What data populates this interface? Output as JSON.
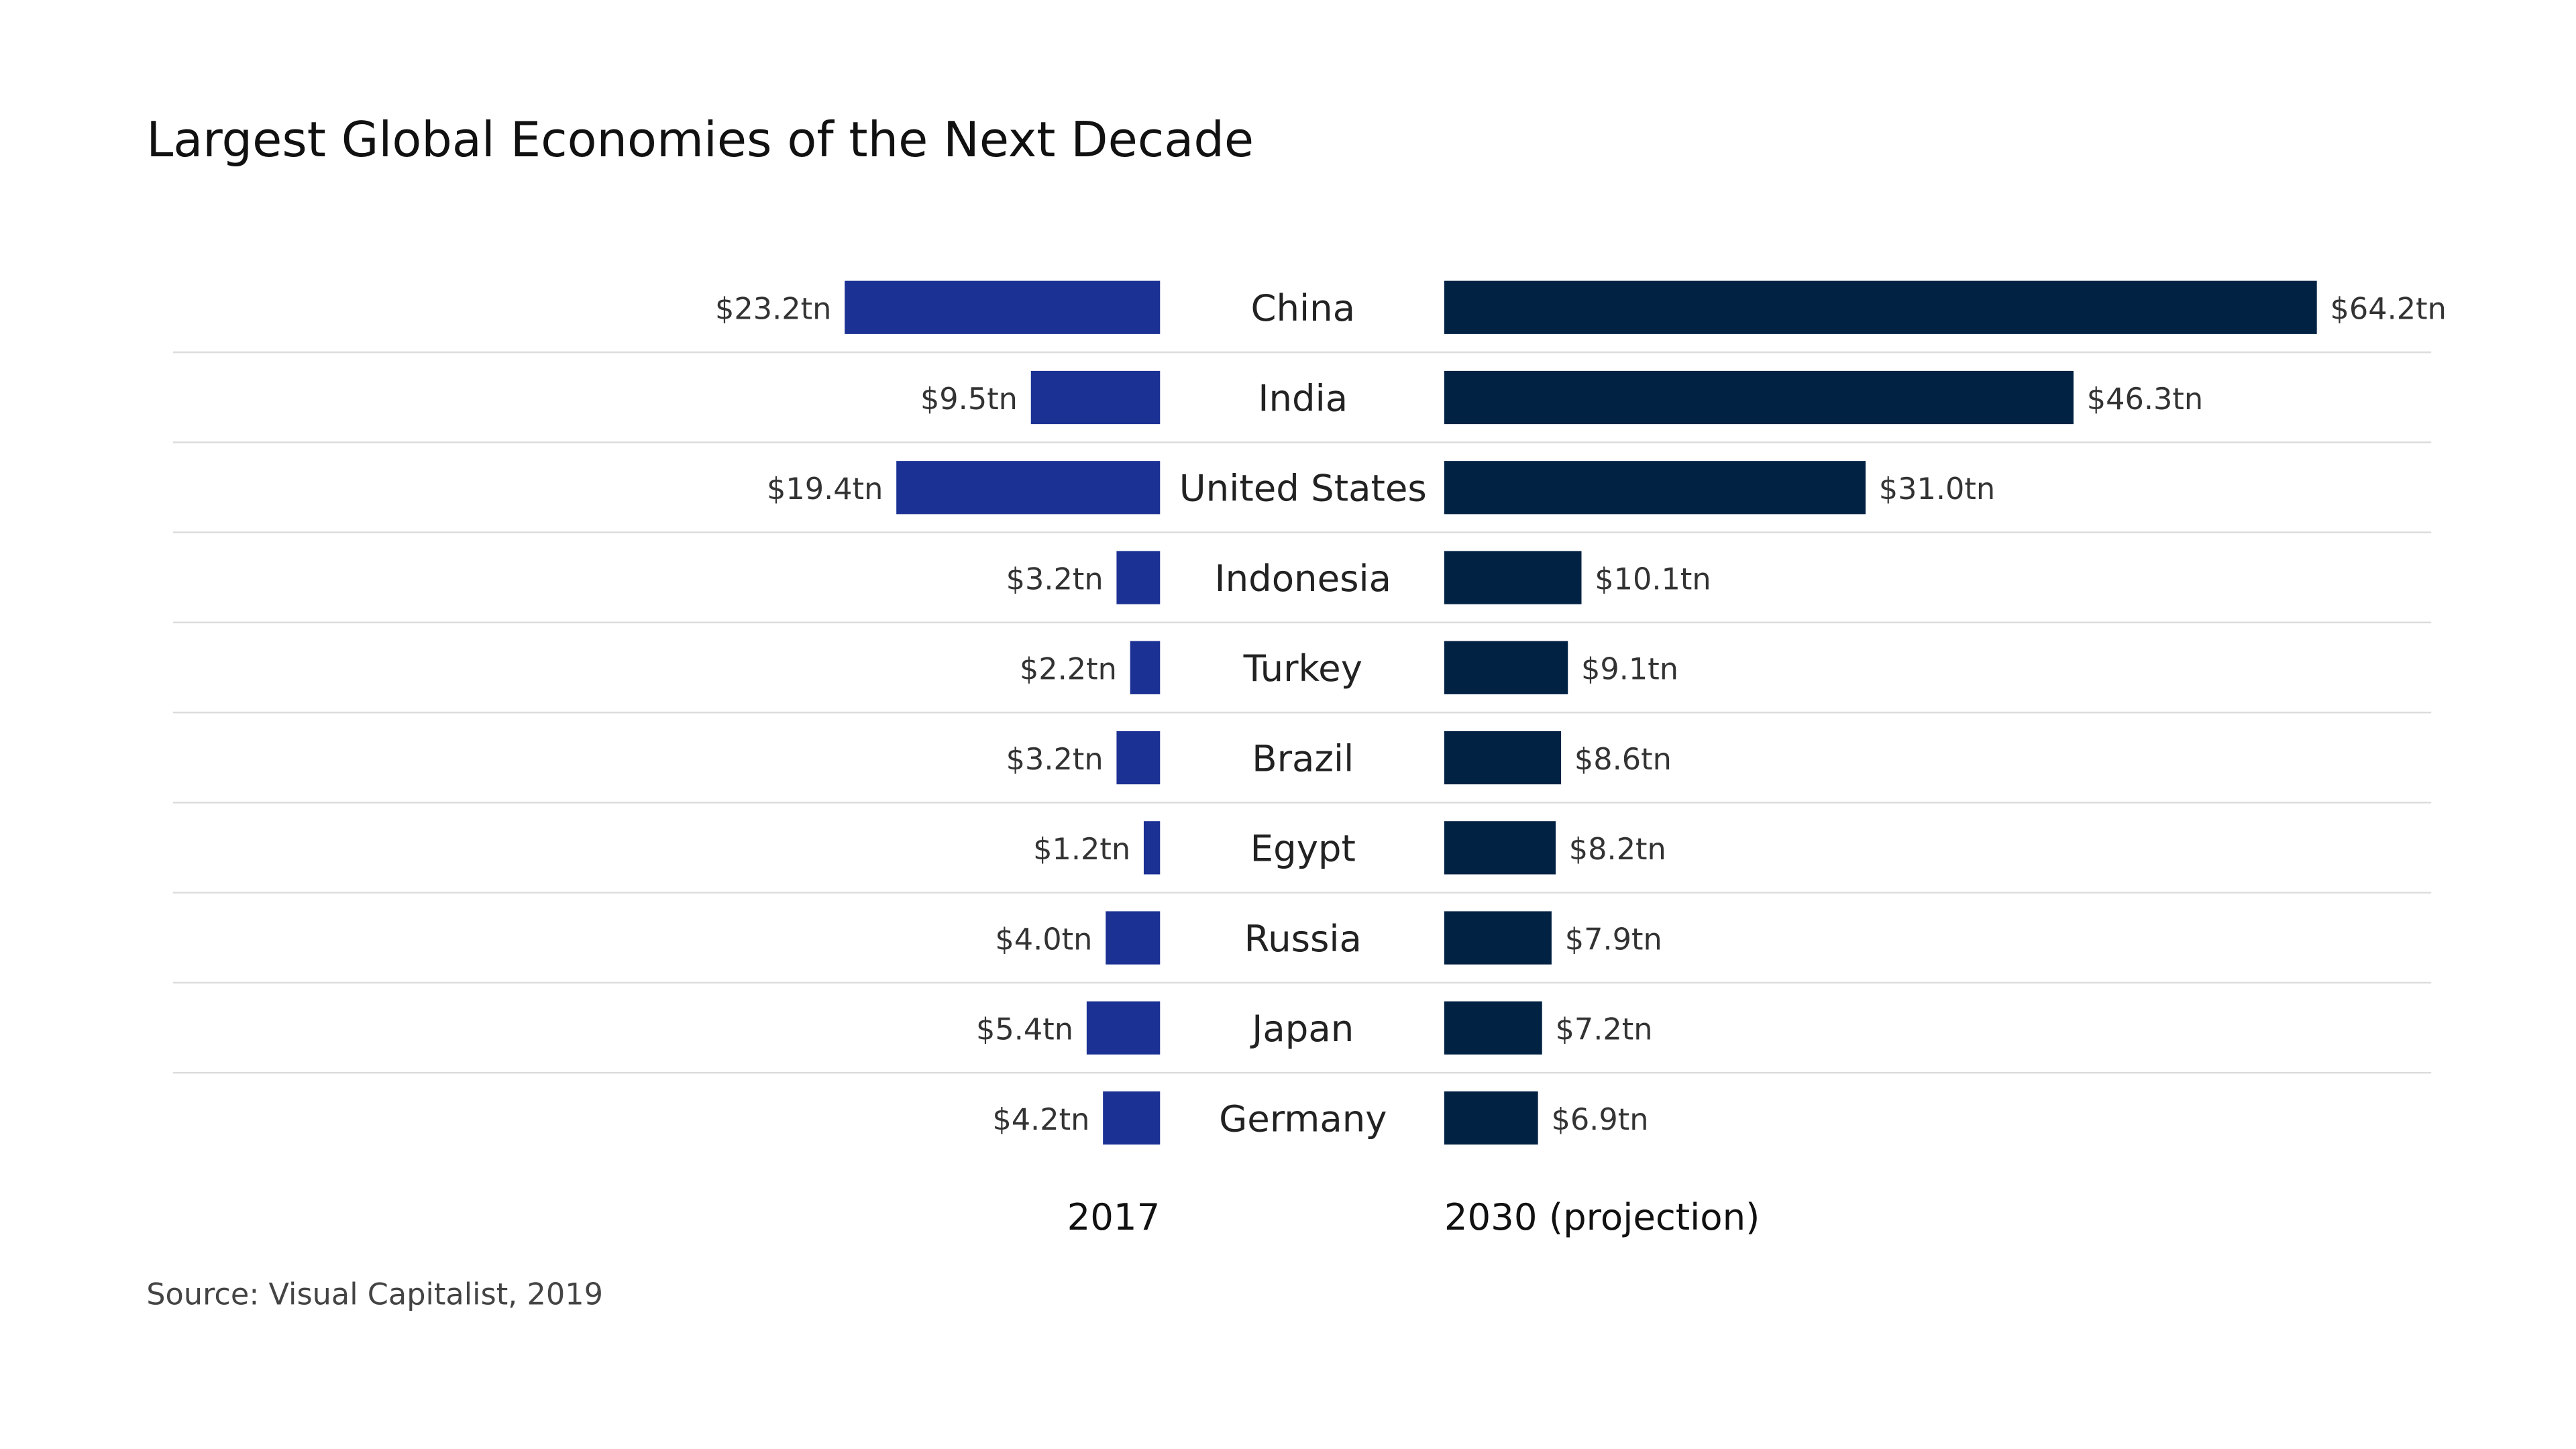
{
  "chart_data": {
    "type": "bar",
    "title": "Largest Global Economies of the Next Decade",
    "source": "Source: Visual Capitalist, 2019",
    "categories": [
      "China",
      "India",
      "United States",
      "Indonesia",
      "Turkey",
      "Brazil",
      "Egypt",
      "Russia",
      "Japan",
      "Germany"
    ],
    "series": [
      {
        "name": "2017",
        "color": "#1b3194",
        "values": [
          23.2,
          9.5,
          19.4,
          3.2,
          2.2,
          3.2,
          1.2,
          4.0,
          5.4,
          4.2
        ],
        "labels": [
          "$23.2tn",
          "$9.5tn",
          "$19.4tn",
          "$3.2tn",
          "$2.2tn",
          "$3.2tn",
          "$1.2tn",
          "$4.0tn",
          "$5.4tn",
          "$4.2tn"
        ]
      },
      {
        "name": "2030 (projection)",
        "color": "#022244",
        "values": [
          64.2,
          46.3,
          31.0,
          10.1,
          9.1,
          8.6,
          8.2,
          7.9,
          7.2,
          6.9
        ],
        "labels": [
          "$64.2tn",
          "$46.3tn",
          "$31.0tn",
          "$10.1tn",
          "$9.1tn",
          "$8.6tn",
          "$8.2tn",
          "$7.9tn",
          "$7.2tn",
          "$6.9tn"
        ]
      }
    ],
    "unit": "trillion USD",
    "grid": false
  }
}
